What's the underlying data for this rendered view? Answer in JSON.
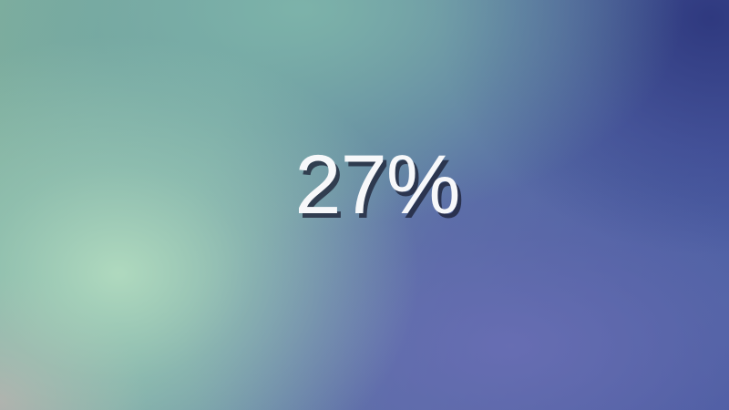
{
  "progress": {
    "percent_text": "27%",
    "percent": 27
  },
  "colors": {
    "text": "#f7f8fa",
    "shadow": "#191e32",
    "background_light": "#b2dcc0",
    "background_dark": "#2d377d"
  }
}
